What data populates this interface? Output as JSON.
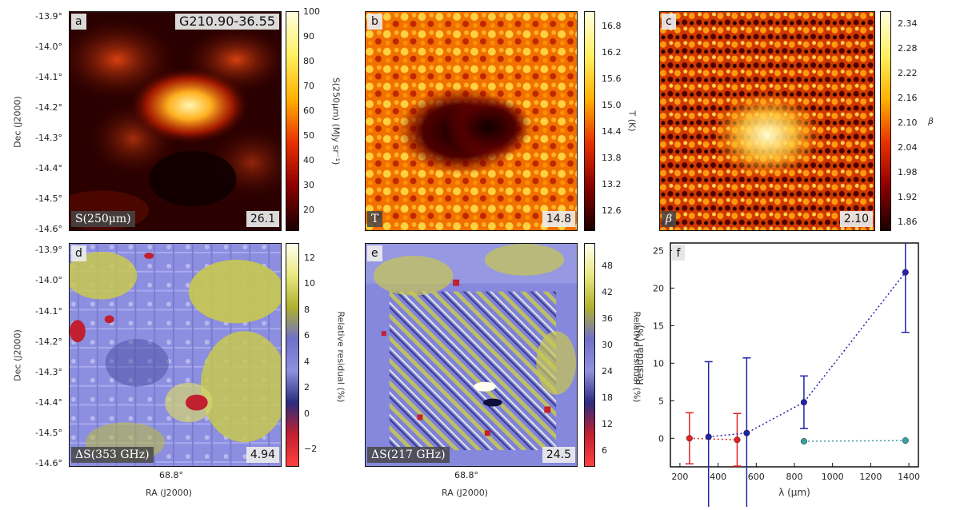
{
  "common": {
    "dec_ticks": [
      "-13.9°",
      "-14.0°",
      "-14.1°",
      "-14.2°",
      "-14.3°",
      "-14.4°",
      "-14.5°",
      "-14.6°"
    ],
    "dec_label": "Dec (J2000)",
    "ra_tick": "68.8°",
    "ra_label": "RA (J2000)"
  },
  "panels": {
    "a": {
      "letter": "a",
      "field": "G210.90-36.55",
      "label": "S(250μm)",
      "value": "26.1",
      "cbar_label": "S(250μm) (MJy sr⁻¹)",
      "cbar_ticks": [
        "100",
        "90",
        "80",
        "70",
        "60",
        "50",
        "40",
        "30",
        "20"
      ]
    },
    "b": {
      "letter": "b",
      "label": "T",
      "value": "14.8",
      "cbar_label": "T (K)",
      "cbar_ticks": [
        "16.8",
        "16.2",
        "15.6",
        "15.0",
        "14.4",
        "13.8",
        "13.2",
        "12.6"
      ]
    },
    "c": {
      "letter": "c",
      "label": "β",
      "value": "2.10",
      "cbar_label": "β",
      "cbar_ticks": [
        "2.34",
        "2.28",
        "2.22",
        "2.16",
        "2.10",
        "2.04",
        "1.98",
        "1.92",
        "1.86"
      ]
    },
    "d": {
      "letter": "d",
      "label": "ΔS(353 GHz)",
      "value": "4.94",
      "cbar_label": "Relative residual (%)",
      "cbar_ticks": [
        "12",
        "10",
        "8",
        "6",
        "4",
        "2",
        "0",
        "−2"
      ]
    },
    "e": {
      "letter": "e",
      "label": "ΔS(217 GHz)",
      "value": "24.5",
      "cbar_label": "Relative residual (%)",
      "cbar_ticks": [
        "48",
        "42",
        "36",
        "30",
        "24",
        "18",
        "12",
        "6"
      ]
    }
  },
  "chart_data": {
    "type": "scatter",
    "letter": "f",
    "xlabel": "λ (μm)",
    "ylabel": "Residual (%)",
    "xlim": [
      150,
      1450
    ],
    "ylim": [
      -3.8,
      26
    ],
    "xticks": [
      200,
      400,
      600,
      800,
      1000,
      1200,
      1400
    ],
    "yticks": [
      0,
      5,
      10,
      15,
      20,
      25
    ],
    "series": [
      {
        "color": "#e32222",
        "x": [
          250,
          500
        ],
        "y": [
          0,
          -0.2
        ],
        "yerr": [
          3.4,
          3.5
        ]
      },
      {
        "color": "#2222aa",
        "x": [
          350,
          550,
          850,
          1382
        ],
        "y": [
          0.2,
          0.7,
          4.8,
          22.1
        ],
        "yerr": [
          10.0,
          10.0,
          3.5,
          8.0
        ]
      },
      {
        "color": "#3aa0a0",
        "x": [
          850,
          1382
        ],
        "y": [
          -0.4,
          -0.3
        ],
        "yerr": [
          0,
          0
        ]
      }
    ],
    "grid": false
  }
}
